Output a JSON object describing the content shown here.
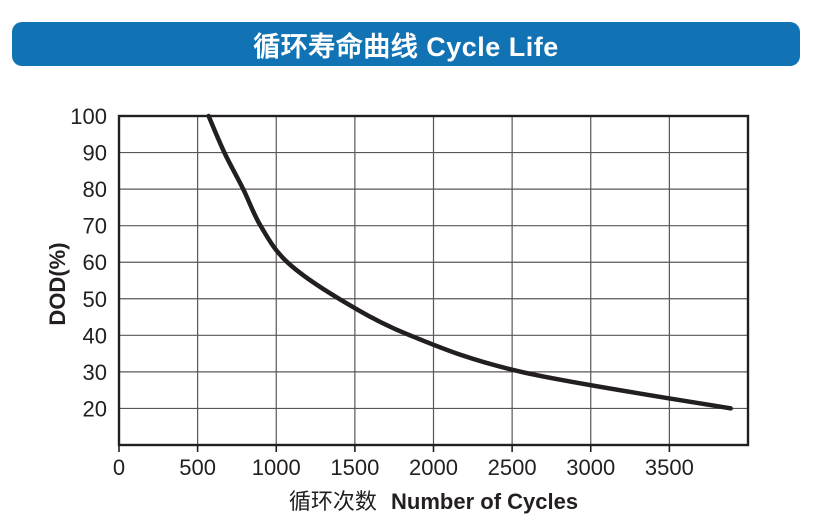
{
  "banner": {
    "title": "循环寿命曲线 Cycle Life",
    "bg_color": "#1173b4",
    "text_color": "#ffffff"
  },
  "chart_data": {
    "type": "line",
    "title": "循环寿命曲线 Cycle Life",
    "x_axis": {
      "label_cn": "循环次数",
      "label_en": "Number of Cycles",
      "ticks": [
        0,
        500,
        1000,
        1500,
        2000,
        2500,
        3000,
        3500
      ],
      "range": [
        0,
        4000
      ],
      "gridline_step": 500
    },
    "y_axis": {
      "label": "DOD(%)",
      "ticks": [
        100,
        90,
        80,
        70,
        60,
        50,
        40,
        30,
        20
      ],
      "range": [
        10,
        100
      ],
      "gridline_step": 10
    },
    "grid": true,
    "legend": false,
    "series": [
      {
        "name": "Cycle Life",
        "color": "#231f20",
        "points": [
          {
            "cycles": 570,
            "dod": 100
          },
          {
            "cycles": 670,
            "dod": 90
          },
          {
            "cycles": 790,
            "dod": 80
          },
          {
            "cycles": 900,
            "dod": 70
          },
          {
            "cycles": 1070,
            "dod": 60
          },
          {
            "cycles": 1400,
            "dod": 50
          },
          {
            "cycles": 1850,
            "dod": 40
          },
          {
            "cycles": 2560,
            "dod": 30
          },
          {
            "cycles": 3890,
            "dod": 20
          }
        ]
      }
    ],
    "colors": {
      "grid": "#59565a",
      "plot_border": "#231f20",
      "text": "#231f20"
    }
  }
}
